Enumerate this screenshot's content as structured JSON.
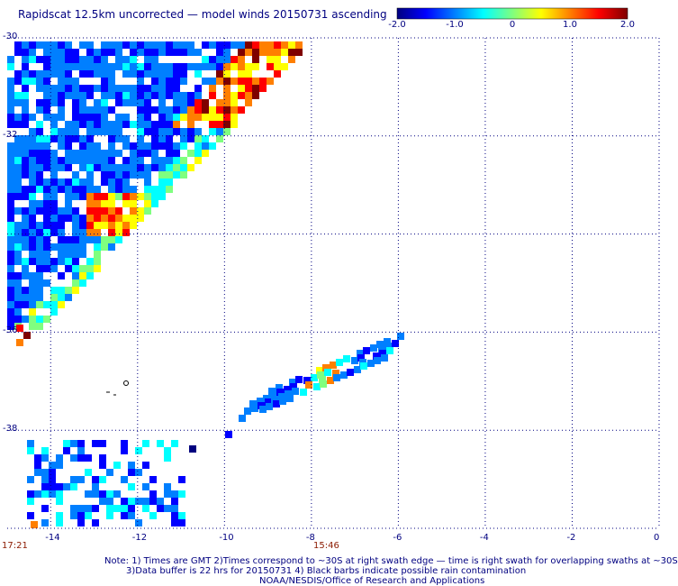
{
  "title": "Rapidscat 12.5km uncorrected — model winds 20150731 ascending",
  "colorbar": {
    "ticks": [
      "-2.0",
      "-1.0",
      "0",
      "1.0",
      "2.0"
    ],
    "tick_values": [
      -2,
      -1,
      0,
      1,
      2
    ],
    "range": [
      -2,
      2
    ],
    "colors": [
      "#00007f",
      "#0000ff",
      "#007fff",
      "#00ffff",
      "#7fff7f",
      "#ffff00",
      "#ff7f00",
      "#ff0000",
      "#7f0000"
    ]
  },
  "map": {
    "lon_ticks": [
      "-14",
      "-12",
      "-10",
      "-8",
      "-6",
      "-4",
      "-2",
      "0"
    ],
    "lat_ticks": [
      "-30",
      "-32",
      "",
      "-36",
      "-38",
      ""
    ],
    "lon_range": [
      -15,
      0
    ],
    "lat_range": [
      -30,
      -40
    ],
    "grid": "dotted",
    "time_left": "17:21",
    "time_right": "15:46"
  },
  "notes": [
    "Note: 1) Times are GMT 2)Times correspond to ~30S at right swath edge — time is right swath for overlapping swaths at ~30S",
    "3)Data buffer is 22 hrs for 20150731 4) Black barbs indicate possible rain contamination",
    "NOAA/NESDIS/Office of Research and Applications"
  ]
}
